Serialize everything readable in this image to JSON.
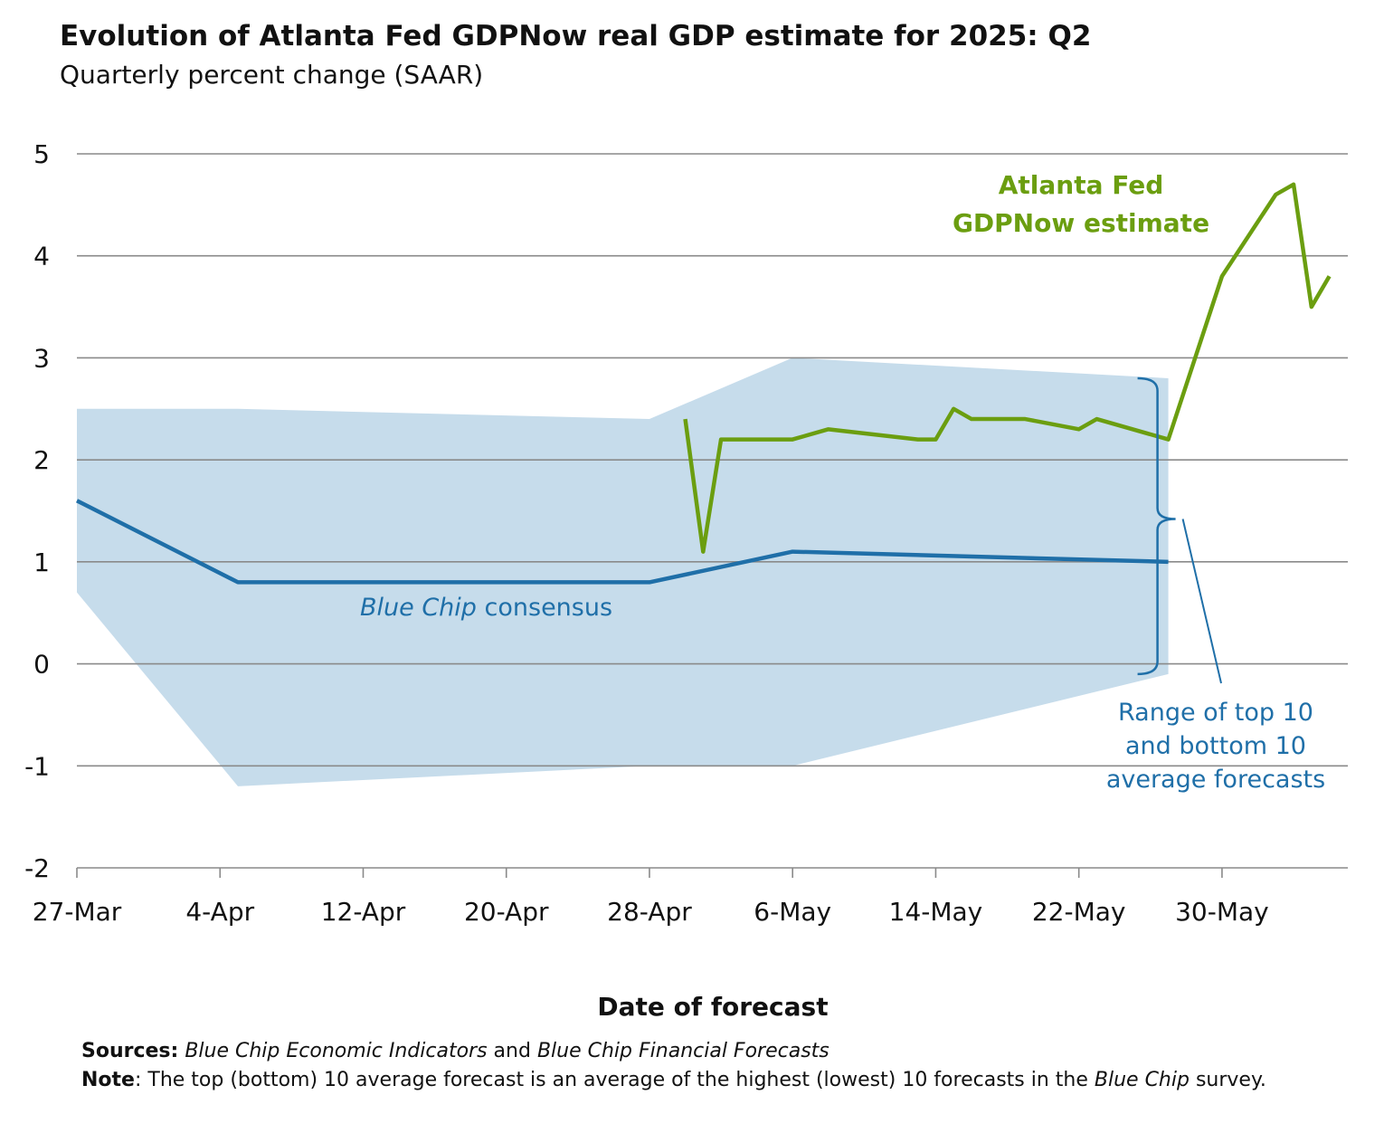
{
  "title": "Evolution of Atlanta Fed GDPNow real GDP estimate for 2025: Q2",
  "subtitle": "Quarterly percent change (SAAR)",
  "colors": {
    "gdpnow": "#6b9e10",
    "consensus": "#1f6fa8",
    "range": "#c6dceb",
    "grid": "#8a8a8a"
  },
  "chart_data": {
    "type": "line",
    "xlabel": "Date of forecast",
    "ylabel": "",
    "ylim": [
      -2,
      5
    ],
    "y_ticks": [
      "5",
      "4",
      "3",
      "2",
      "1",
      "0",
      "-1",
      "-2"
    ],
    "x_ticks": [
      "27-Mar",
      "4-Apr",
      "12-Apr",
      "20-Apr",
      "28-Apr",
      "6-May",
      "14-May",
      "22-May",
      "30-May"
    ],
    "x_tick_dates": [
      "2025-03-27",
      "2025-04-04",
      "2025-04-12",
      "2025-04-20",
      "2025-04-28",
      "2025-05-06",
      "2025-05-14",
      "2025-05-22",
      "2025-05-30"
    ],
    "grid": true,
    "series": [
      {
        "name": "Atlanta Fed GDPNow estimate",
        "x": [
          "2025-04-30",
          "2025-05-01",
          "2025-05-02",
          "2025-05-06",
          "2025-05-08",
          "2025-05-13",
          "2025-05-14",
          "2025-05-15",
          "2025-05-16",
          "2025-05-19",
          "2025-05-22",
          "2025-05-23",
          "2025-05-27",
          "2025-05-30",
          "2025-06-02",
          "2025-06-03",
          "2025-06-04",
          "2025-06-05"
        ],
        "values": [
          2.4,
          1.1,
          2.2,
          2.2,
          2.3,
          2.2,
          2.2,
          2.5,
          2.4,
          2.4,
          2.3,
          2.4,
          2.2,
          3.8,
          4.6,
          4.7,
          3.5,
          3.8
        ]
      },
      {
        "name": "Blue Chip consensus",
        "x": [
          "2025-03-27",
          "2025-04-05",
          "2025-04-28",
          "2025-05-06",
          "2025-05-27"
        ],
        "values": [
          1.6,
          0.8,
          0.8,
          1.1,
          1.0
        ]
      },
      {
        "name": "Range of top 10 and bottom 10 average forecasts",
        "x": [
          "2025-03-27",
          "2025-04-05",
          "2025-04-28",
          "2025-05-06",
          "2025-05-27"
        ],
        "upper": [
          2.5,
          2.5,
          2.4,
          3.0,
          2.8
        ],
        "lower": [
          0.7,
          -1.2,
          -1.0,
          -1.0,
          -0.1
        ]
      }
    ],
    "annotations": {
      "gdpnow_label": [
        "Atlanta Fed",
        "GDPNow estimate"
      ],
      "consensus_italic": "Blue Chip",
      "consensus_rest": " consensus",
      "range_label": [
        "Range of top 10",
        "and bottom 10",
        "average forecasts"
      ]
    }
  },
  "notes": {
    "sources_label": "Sources:",
    "sources_ital1": "Blue Chip Economic Indicators",
    "sources_and": " and ",
    "sources_ital2": "Blue Chip Financial Forecasts",
    "note_label": "Note",
    "note_text": ": The top (bottom) 10 average forecast is an average of the highest (lowest) 10 forecasts in the ",
    "note_ital": "Blue Chip",
    "note_end": " survey."
  }
}
